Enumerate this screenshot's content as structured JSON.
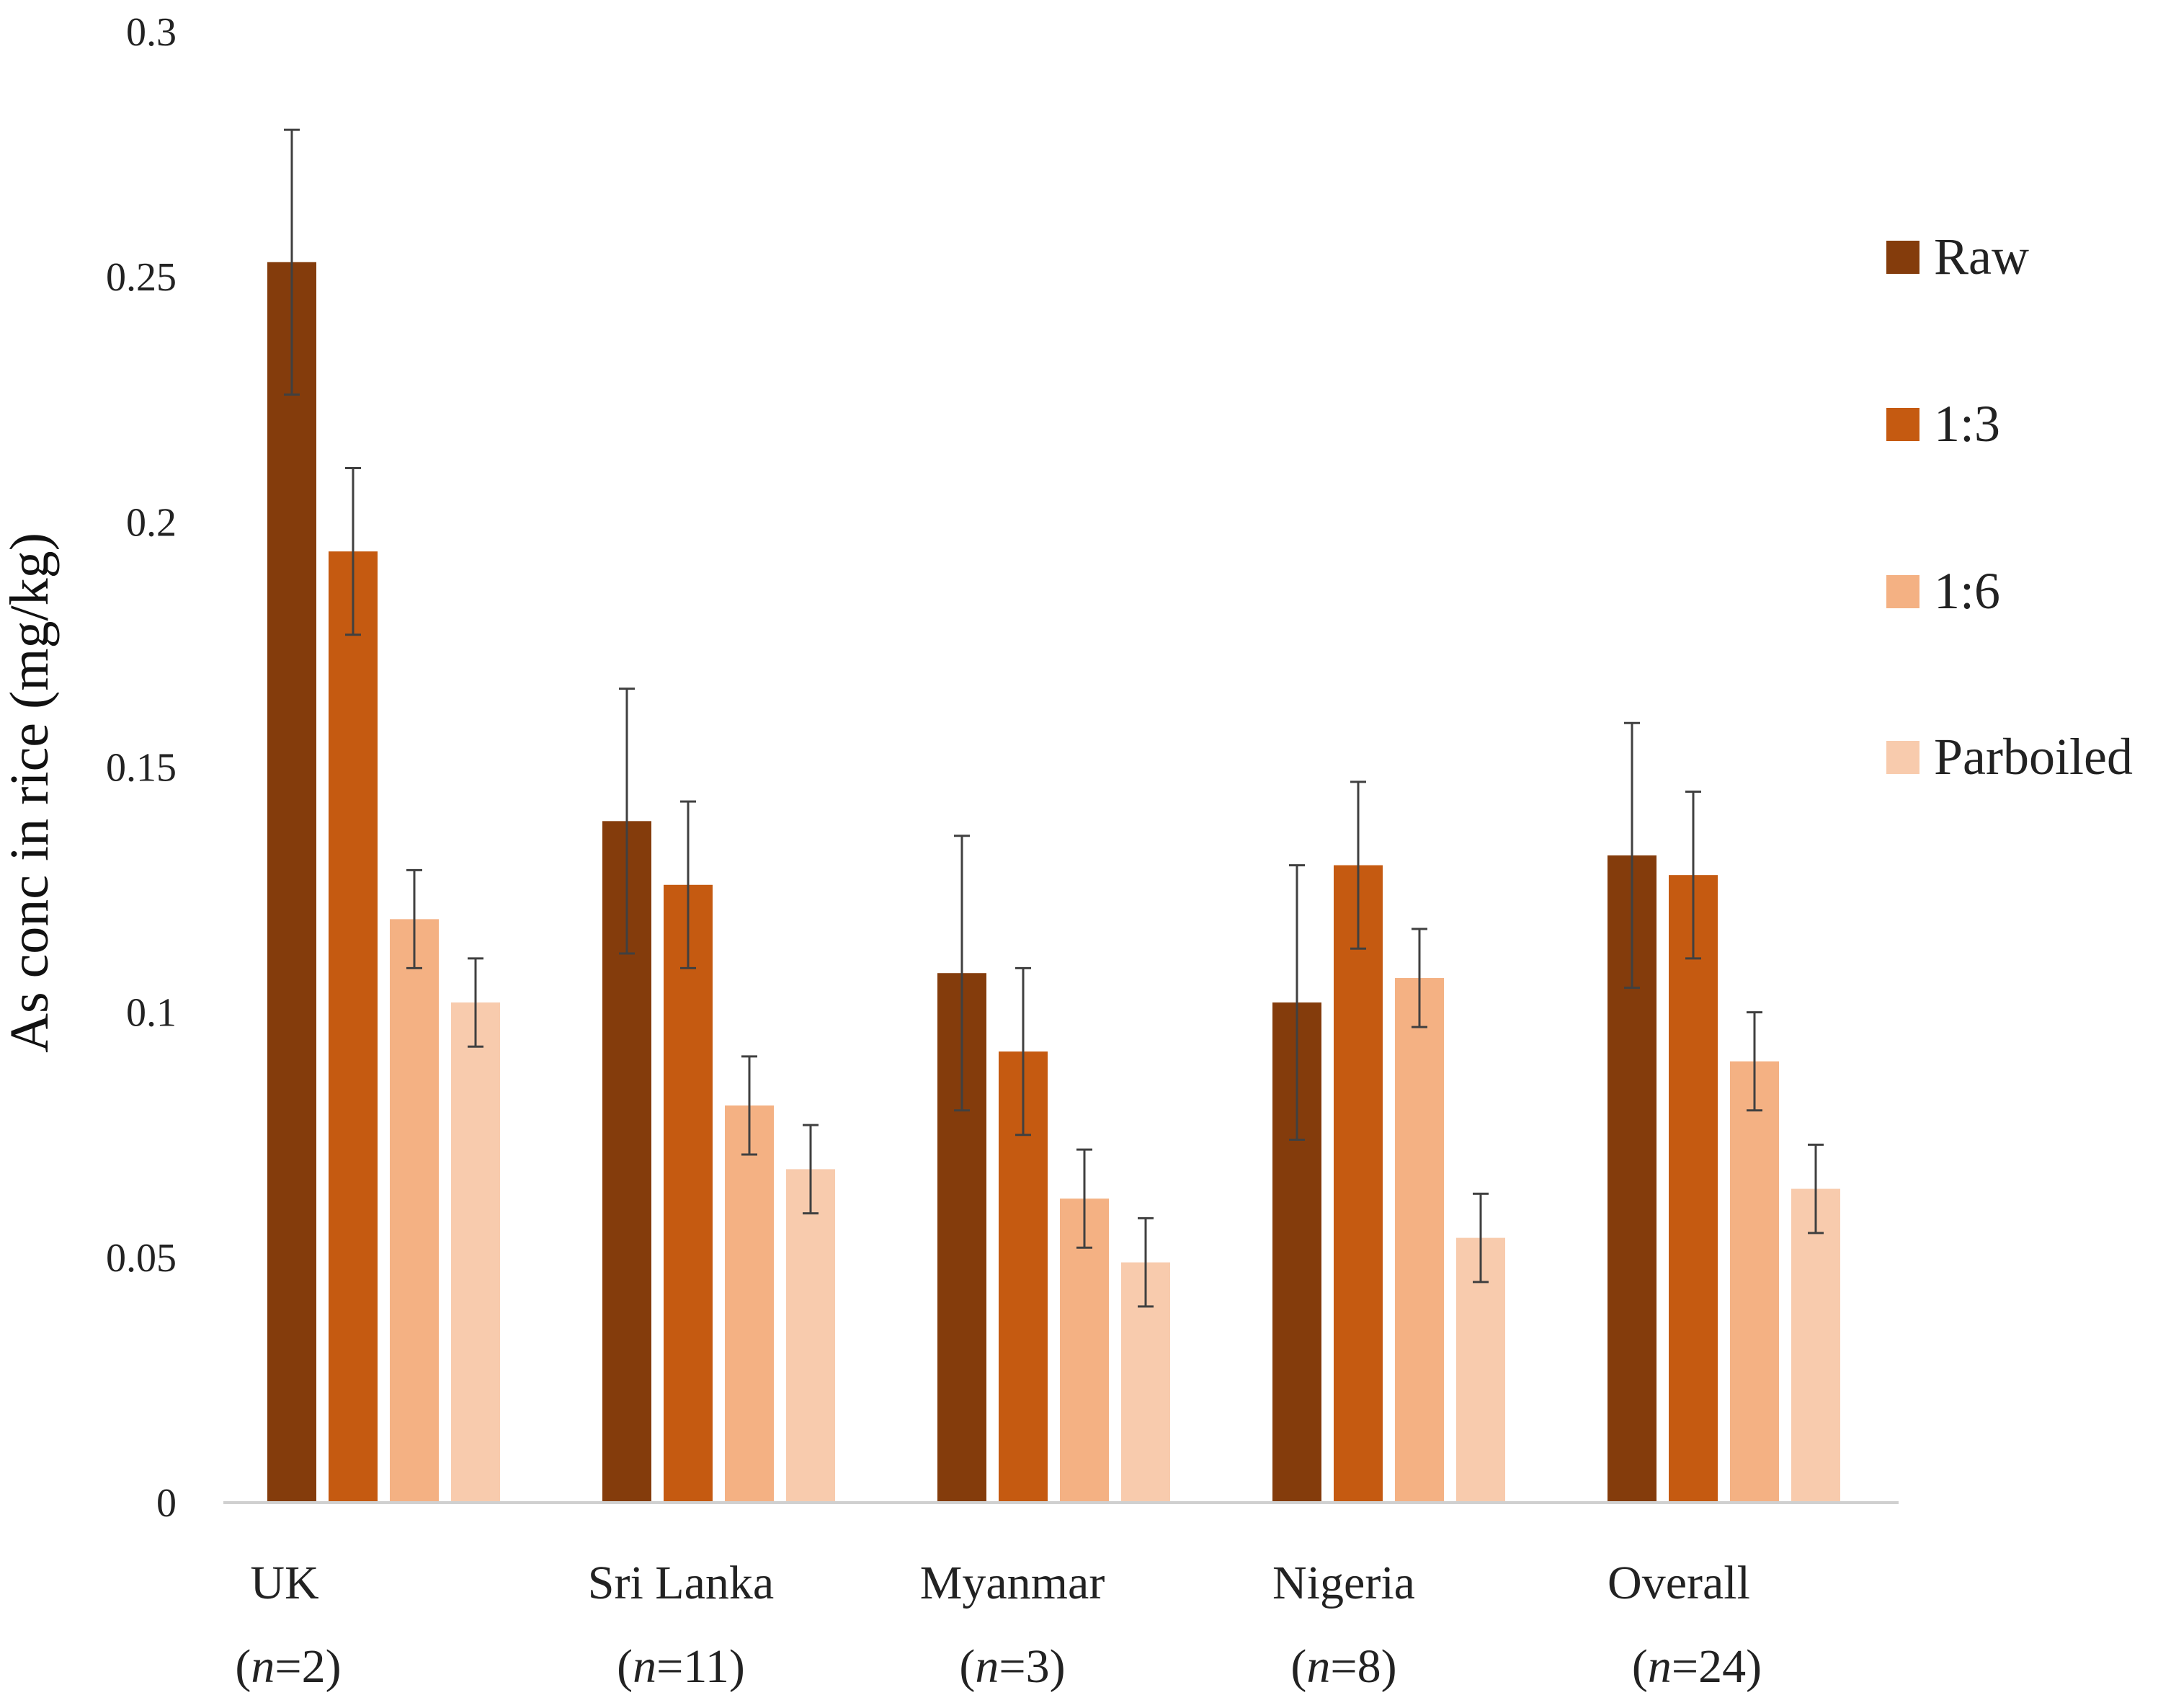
{
  "chart_data": {
    "type": "bar",
    "title": "",
    "xlabel": "",
    "ylabel": "As conc in rice (mg/kg)",
    "ylim": [
      0,
      0.3
    ],
    "yticks": [
      "0",
      "0.05",
      "0.1",
      "0.15",
      "0.2",
      "0.25",
      "0.3"
    ],
    "grid": false,
    "legend_position": "right",
    "categories": [
      "UK",
      "Sri Lanka",
      "Myanmar",
      "Nigeria",
      "Overall"
    ],
    "sample_sizes": [
      "(n=2)",
      "(n=11)",
      "(n=3)",
      "(n=8)",
      "(n=24)"
    ],
    "series": [
      {
        "name": "Raw",
        "color": "#843c0c",
        "values": [
          0.253,
          0.139,
          0.108,
          0.102,
          0.132
        ],
        "errors": [
          0.027,
          0.027,
          0.028,
          0.028,
          0.027
        ]
      },
      {
        "name": "1:3",
        "color": "#c55a11",
        "values": [
          0.194,
          0.126,
          0.092,
          0.13,
          0.128
        ],
        "errors": [
          0.017,
          0.017,
          0.017,
          0.017,
          0.017
        ]
      },
      {
        "name": "1:6",
        "color": "#f4b183",
        "values": [
          0.119,
          0.081,
          0.062,
          0.107,
          0.09
        ],
        "errors": [
          0.01,
          0.01,
          0.01,
          0.01,
          0.01
        ]
      },
      {
        "name": "Parboiled",
        "color": "#f8cbad",
        "values": [
          0.102,
          0.068,
          0.049,
          0.054,
          0.064
        ],
        "errors": [
          0.009,
          0.009,
          0.009,
          0.009,
          0.009
        ]
      }
    ]
  }
}
